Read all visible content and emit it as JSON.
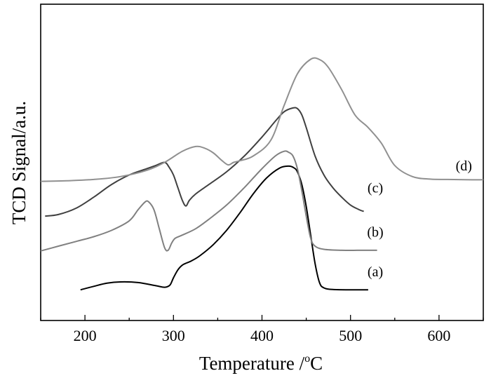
{
  "chart_data": {
    "type": "line",
    "xlabel": "Temperature /",
    "xlabel_unit": "oC",
    "xlabel_unit_sup": "o",
    "xlabel_unit_main": "C",
    "ylabel": "TCD Signal/a.u.",
    "xlim": [
      150,
      650
    ],
    "ylim": [
      0,
      1
    ],
    "xticks": [
      200,
      300,
      400,
      500,
      600
    ],
    "yticks_shown": false,
    "grid": false,
    "legend": "none",
    "series": [
      {
        "name": "(a)",
        "color": "#000000",
        "x": [
          195,
          210,
          225,
          240,
          260,
          280,
          290,
          296,
          300,
          305,
          310,
          315,
          320,
          330,
          345,
          360,
          375,
          390,
          405,
          420,
          430,
          436,
          440,
          445,
          450,
          455,
          460,
          465,
          470,
          480,
          500,
          520
        ],
        "y": [
          0.097,
          0.108,
          0.118,
          0.122,
          0.12,
          0.11,
          0.105,
          0.112,
          0.135,
          0.16,
          0.175,
          0.182,
          0.188,
          0.205,
          0.24,
          0.285,
          0.34,
          0.4,
          0.45,
          0.482,
          0.488,
          0.483,
          0.47,
          0.43,
          0.36,
          0.27,
          0.18,
          0.12,
          0.103,
          0.098,
          0.097,
          0.097
        ]
      },
      {
        "name": "(b)",
        "color": "#808080",
        "x": [
          150,
          170,
          190,
          210,
          230,
          250,
          260,
          268,
          272,
          278,
          284,
          290,
          294,
          298,
          302,
          310,
          325,
          340,
          360,
          380,
          400,
          415,
          425,
          430,
          435,
          440,
          445,
          450,
          455,
          460,
          470,
          490,
          510,
          530
        ],
        "y": [
          0.22,
          0.235,
          0.25,
          0.265,
          0.285,
          0.315,
          0.35,
          0.375,
          0.375,
          0.35,
          0.29,
          0.23,
          0.222,
          0.245,
          0.26,
          0.27,
          0.29,
          0.32,
          0.365,
          0.42,
          0.48,
          0.52,
          0.535,
          0.532,
          0.52,
          0.48,
          0.41,
          0.33,
          0.26,
          0.235,
          0.225,
          0.222,
          0.222,
          0.222
        ]
      },
      {
        "name": "(c)",
        "color": "#404040",
        "x": [
          155,
          170,
          190,
          210,
          230,
          250,
          270,
          280,
          290,
          295,
          300,
          305,
          310,
          314,
          318,
          325,
          340,
          360,
          380,
          400,
          415,
          425,
          435,
          440,
          445,
          450,
          460,
          470,
          480,
          490,
          500,
          510,
          515
        ],
        "y": [
          0.33,
          0.335,
          0.355,
          0.39,
          0.43,
          0.46,
          0.48,
          0.49,
          0.5,
          0.485,
          0.46,
          0.42,
          0.38,
          0.362,
          0.38,
          0.4,
          0.43,
          0.47,
          0.52,
          0.58,
          0.63,
          0.66,
          0.672,
          0.67,
          0.65,
          0.61,
          0.52,
          0.46,
          0.42,
          0.39,
          0.365,
          0.35,
          0.345
        ]
      },
      {
        "name": "(d)",
        "color": "#909090",
        "x": [
          150,
          180,
          210,
          240,
          270,
          290,
          310,
          325,
          335,
          345,
          355,
          362,
          368,
          375,
          390,
          410,
          425,
          440,
          455,
          465,
          475,
          490,
          505,
          520,
          535,
          550,
          570,
          590,
          610,
          630,
          650
        ],
        "y": [
          0.44,
          0.442,
          0.446,
          0.455,
          0.475,
          0.5,
          0.535,
          0.55,
          0.545,
          0.53,
          0.505,
          0.492,
          0.5,
          0.505,
          0.52,
          0.57,
          0.68,
          0.78,
          0.826,
          0.825,
          0.8,
          0.73,
          0.65,
          0.61,
          0.56,
          0.49,
          0.455,
          0.447,
          0.446,
          0.445,
          0.445
        ]
      }
    ],
    "annotations": [
      {
        "text": "(a)",
        "x": 528,
        "y": 0.14
      },
      {
        "text": "(b)",
        "x": 528,
        "y": 0.265
      },
      {
        "text": "(c)",
        "x": 528,
        "y": 0.405
      },
      {
        "text": "(d)",
        "x": 628,
        "y": 0.475
      }
    ]
  }
}
